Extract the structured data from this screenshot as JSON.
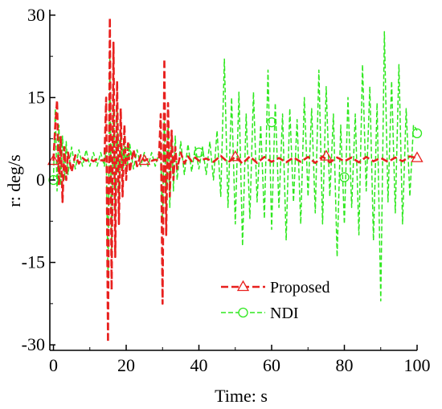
{
  "chart_data": {
    "type": "line",
    "title": "",
    "xlabel": "Time: s",
    "ylabel": "r: deg/s",
    "xlim": [
      -1,
      100
    ],
    "ylim": [
      -31,
      31
    ],
    "x_ticks": [
      0,
      20,
      40,
      60,
      80,
      100
    ],
    "y_ticks": [
      30,
      15,
      0,
      -15,
      -30
    ],
    "x_tick_labels": [
      "0",
      "20",
      "40",
      "60",
      "80",
      "100"
    ],
    "y_tick_labels": [
      "30",
      "15",
      "0",
      "-15",
      "-30"
    ],
    "grid": false,
    "legend_position": "lower-center",
    "series": [
      {
        "name": "Proposed",
        "color": "#e8201e",
        "style": "dashed",
        "marker": "triangle",
        "marker_x": [
          0,
          25,
          50,
          75,
          100
        ],
        "points": [
          [
            0,
            3.5
          ],
          [
            0.5,
            10
          ],
          [
            1,
            14.5
          ],
          [
            1.5,
            -1
          ],
          [
            2,
            8
          ],
          [
            2.5,
            -4
          ],
          [
            3,
            6
          ],
          [
            3.5,
            0
          ],
          [
            4,
            5
          ],
          [
            5,
            1.5
          ],
          [
            6,
            4.5
          ],
          [
            7,
            3
          ],
          [
            8,
            4
          ],
          [
            9,
            3.5
          ],
          [
            10,
            3.8
          ],
          [
            11,
            3.4
          ],
          [
            12,
            3.8
          ],
          [
            13,
            3.6
          ],
          [
            14,
            3.5
          ],
          [
            14.5,
            15
          ],
          [
            15,
            -29.5
          ],
          [
            15.5,
            29.5
          ],
          [
            16,
            -20
          ],
          [
            16.5,
            25
          ],
          [
            17,
            -14
          ],
          [
            17.5,
            18
          ],
          [
            18,
            -8
          ],
          [
            18.5,
            13
          ],
          [
            19,
            -3
          ],
          [
            19.5,
            10
          ],
          [
            20,
            0
          ],
          [
            20.5,
            7
          ],
          [
            21,
            1.5
          ],
          [
            22,
            5.5
          ],
          [
            23,
            2.5
          ],
          [
            24,
            4.5
          ],
          [
            25,
            3.5
          ],
          [
            26,
            3.8
          ],
          [
            27,
            3.5
          ],
          [
            28,
            3.7
          ],
          [
            29,
            3.5
          ],
          [
            29.5,
            12
          ],
          [
            30,
            -22.5
          ],
          [
            30.5,
            22
          ],
          [
            31,
            -10
          ],
          [
            31.5,
            14
          ],
          [
            32,
            -3
          ],
          [
            32.5,
            9
          ],
          [
            33,
            0
          ],
          [
            33.5,
            6
          ],
          [
            34,
            2
          ],
          [
            35,
            5
          ],
          [
            36,
            3
          ],
          [
            37,
            4.3
          ],
          [
            38,
            3.4
          ],
          [
            39,
            4.1
          ],
          [
            40,
            3.5
          ],
          [
            42,
            3.9
          ],
          [
            44,
            3.3
          ],
          [
            46,
            4.4
          ],
          [
            48,
            3.2
          ],
          [
            50,
            4.2
          ],
          [
            52,
            3.0
          ],
          [
            54,
            4.3
          ],
          [
            56,
            3.1
          ],
          [
            58,
            4.2
          ],
          [
            60,
            3.3
          ],
          [
            62,
            4.0
          ],
          [
            64,
            3.2
          ],
          [
            66,
            4.1
          ],
          [
            68,
            3.3
          ],
          [
            70,
            4.2
          ],
          [
            72,
            3.1
          ],
          [
            74,
            4.3
          ],
          [
            76,
            3.2
          ],
          [
            78,
            4.1
          ],
          [
            80,
            3.4
          ],
          [
            82,
            4.1
          ],
          [
            84,
            3.2
          ],
          [
            86,
            4.2
          ],
          [
            88,
            3.4
          ],
          [
            90,
            4.0
          ],
          [
            92,
            3.3
          ],
          [
            94,
            4.1
          ],
          [
            96,
            3.4
          ],
          [
            98,
            4.3
          ],
          [
            100,
            4.0
          ]
        ]
      },
      {
        "name": "NDI",
        "color": "#2ee81e",
        "style": "dashed",
        "marker": "circle",
        "marker_points": [
          [
            0,
            0
          ],
          [
            20,
            5
          ],
          [
            40,
            5
          ],
          [
            60,
            10.5
          ],
          [
            80,
            0.5
          ],
          [
            100,
            8.5
          ]
        ],
        "points": [
          [
            0,
            0
          ],
          [
            0.5,
            13
          ],
          [
            1,
            -2
          ],
          [
            1.5,
            10
          ],
          [
            2,
            -1
          ],
          [
            2.5,
            8
          ],
          [
            3,
            0
          ],
          [
            3.5,
            7
          ],
          [
            4,
            1
          ],
          [
            5,
            6
          ],
          [
            6,
            2
          ],
          [
            7,
            5.5
          ],
          [
            8,
            2.5
          ],
          [
            9,
            5.5
          ],
          [
            10,
            2.5
          ],
          [
            11,
            5
          ],
          [
            12,
            2.5
          ],
          [
            13,
            5
          ],
          [
            14,
            2.5
          ],
          [
            14.5,
            6
          ],
          [
            15,
            -18
          ],
          [
            15.5,
            22
          ],
          [
            16,
            -14
          ],
          [
            16.5,
            17
          ],
          [
            17,
            -8
          ],
          [
            17.5,
            14
          ],
          [
            18,
            -4
          ],
          [
            18.5,
            10
          ],
          [
            19,
            -1
          ],
          [
            19.5,
            8
          ],
          [
            20,
            1
          ],
          [
            21,
            6.5
          ],
          [
            22,
            2
          ],
          [
            23,
            5.5
          ],
          [
            24,
            2.5
          ],
          [
            25,
            5
          ],
          [
            26,
            2.5
          ],
          [
            27,
            5
          ],
          [
            28,
            2.5
          ],
          [
            29,
            5
          ],
          [
            29.5,
            5
          ],
          [
            30,
            -8
          ],
          [
            30.5,
            12
          ],
          [
            31,
            -7
          ],
          [
            31.5,
            11
          ],
          [
            32,
            -5
          ],
          [
            32.5,
            9
          ],
          [
            33,
            -2
          ],
          [
            33.5,
            8
          ],
          [
            34,
            0
          ],
          [
            35,
            7
          ],
          [
            36,
            1
          ],
          [
            37,
            6.5
          ],
          [
            38,
            1.5
          ],
          [
            39,
            6
          ],
          [
            40,
            2
          ],
          [
            41,
            6
          ],
          [
            42,
            1
          ],
          [
            43,
            7
          ],
          [
            44,
            0
          ],
          [
            45,
            9
          ],
          [
            46,
            -3
          ],
          [
            47,
            22
          ],
          [
            48,
            -5
          ],
          [
            49,
            15
          ],
          [
            50,
            -8
          ],
          [
            51,
            16
          ],
          [
            52,
            -12
          ],
          [
            53,
            12
          ],
          [
            54,
            -7
          ],
          [
            55,
            16
          ],
          [
            56,
            -4
          ],
          [
            57,
            10
          ],
          [
            58,
            -7
          ],
          [
            59,
            20
          ],
          [
            60,
            -9
          ],
          [
            61,
            14
          ],
          [
            62,
            -5
          ],
          [
            63,
            12
          ],
          [
            64,
            -11
          ],
          [
            65,
            13
          ],
          [
            66,
            -4
          ],
          [
            67,
            11
          ],
          [
            68,
            -8
          ],
          [
            69,
            15
          ],
          [
            70,
            -3
          ],
          [
            71,
            13
          ],
          [
            72,
            -6
          ],
          [
            73,
            20
          ],
          [
            74,
            -8
          ],
          [
            75,
            17
          ],
          [
            76,
            -3
          ],
          [
            77,
            12
          ],
          [
            78,
            -14
          ],
          [
            79,
            10
          ],
          [
            80,
            -8
          ],
          [
            81,
            15
          ],
          [
            82,
            -5
          ],
          [
            83,
            12
          ],
          [
            84,
            -10
          ],
          [
            85,
            21
          ],
          [
            86,
            -2
          ],
          [
            87,
            17
          ],
          [
            88,
            -11
          ],
          [
            89,
            14
          ],
          [
            90,
            -22
          ],
          [
            91,
            27
          ],
          [
            92,
            -4
          ],
          [
            93,
            18
          ],
          [
            94,
            -6
          ],
          [
            95,
            21
          ],
          [
            96,
            -8
          ],
          [
            97,
            13
          ],
          [
            98,
            -3
          ],
          [
            99,
            10
          ],
          [
            100,
            9
          ]
        ]
      }
    ]
  }
}
